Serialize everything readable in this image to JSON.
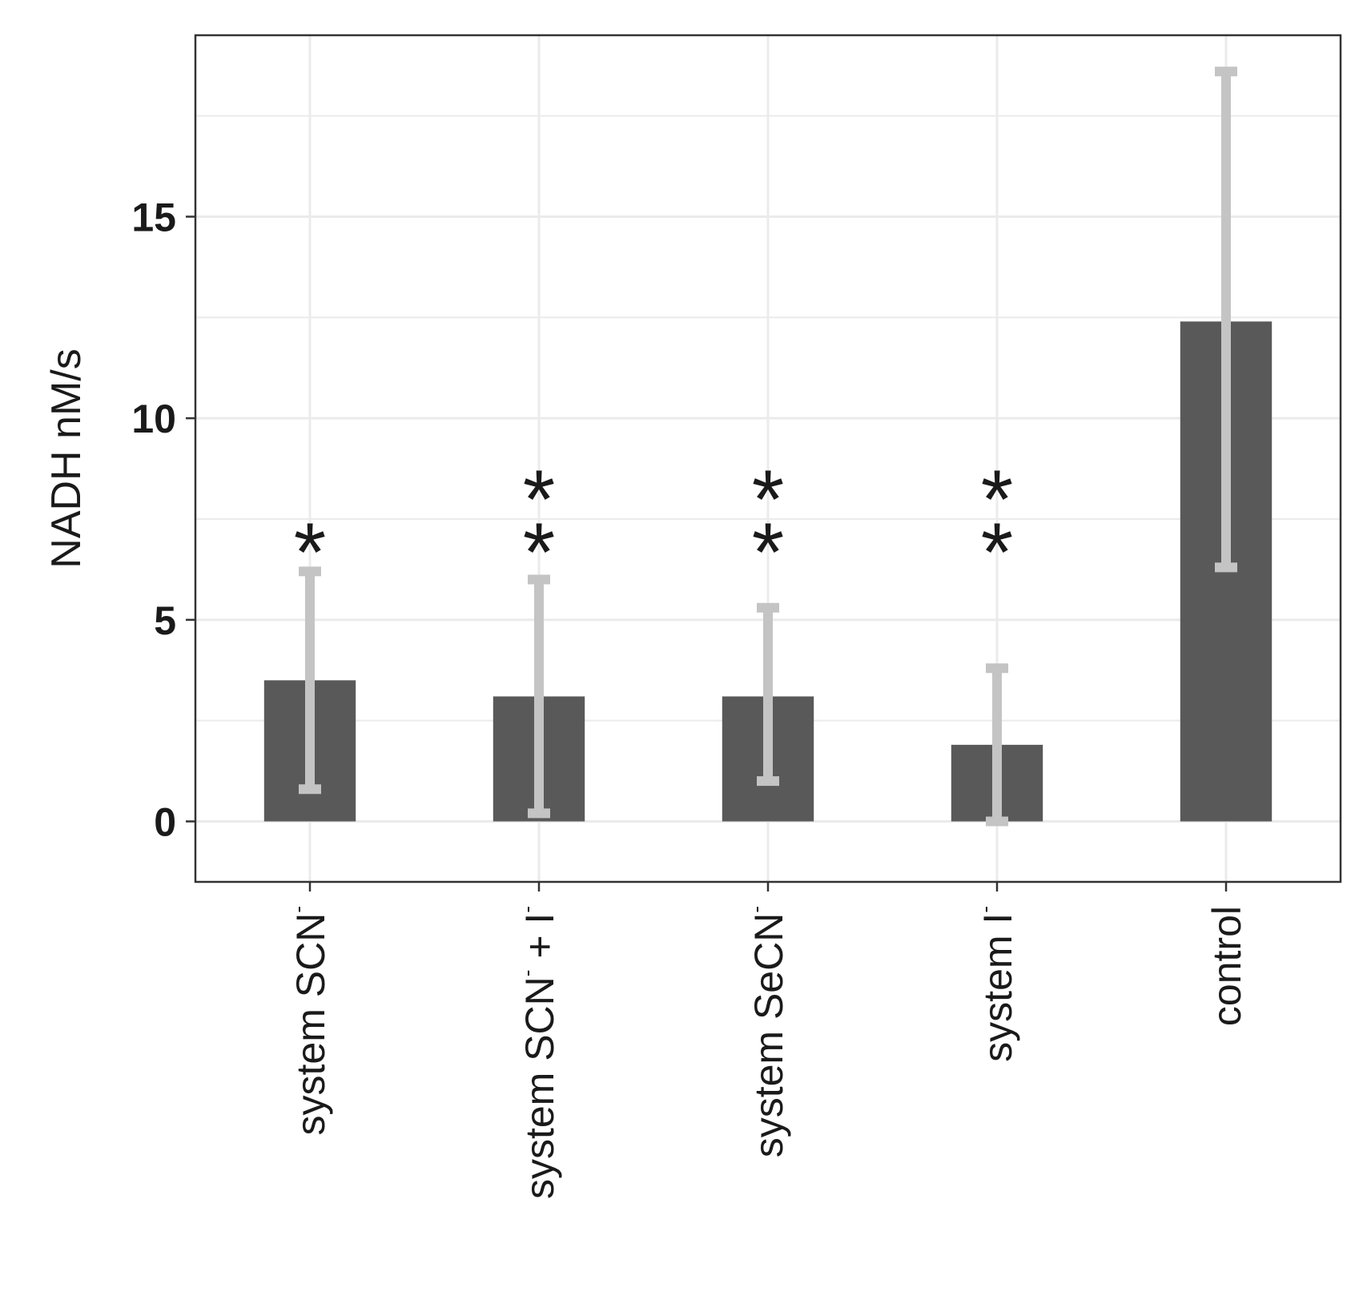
{
  "chart_data": {
    "type": "bar",
    "ylabel": "NADH nM/s",
    "xlabel": "",
    "ylim": [
      -1.5,
      19.5
    ],
    "yticks": [
      0,
      5,
      10,
      15
    ],
    "grid": true,
    "categories": [
      {
        "base": "system SCN",
        "sup": "-",
        "suffix": ""
      },
      {
        "base": "system SCN",
        "sup": "-",
        "suffix": " + I",
        "sup2": "-"
      },
      {
        "base": "system SeCN",
        "sup": "-",
        "suffix": ""
      },
      {
        "base": "system I",
        "sup": "-",
        "suffix": ""
      },
      {
        "base": "control",
        "sup": "",
        "suffix": ""
      }
    ],
    "category_labels": [
      "system SCN-",
      "system SCN- + I-",
      "system SeCN-",
      "system I-",
      "control"
    ],
    "values": [
      3.5,
      3.1,
      3.1,
      1.9,
      12.4
    ],
    "error_low": [
      0.8,
      0.2,
      1.0,
      0.0,
      6.3
    ],
    "error_high": [
      6.2,
      6.0,
      5.3,
      3.8,
      18.6
    ],
    "significance": [
      "*",
      "**",
      "**",
      "**",
      ""
    ],
    "colors": {
      "bar": "#595959",
      "error_bar": "#c4c4c4",
      "grid": "#ebebeb",
      "panel_border": "#333333",
      "text": "#1a1a1a"
    }
  }
}
